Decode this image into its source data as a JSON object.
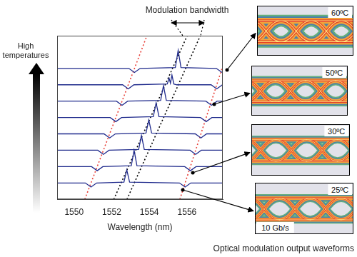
{
  "chart_data": {
    "type": "line",
    "xlabel": "Wavelength (nm)",
    "xlim": [
      1549.1,
      1557.9
    ],
    "xticks": [
      1550,
      1552,
      1554,
      1556
    ],
    "ylim": [
      -1,
      9
    ],
    "grid": false,
    "tick_labels": "x",
    "annotations": [
      "Modulation bandwidth",
      "High temperatures"
    ],
    "series": [
      {
        "color": "#1f2a8c",
        "line_style": "solid",
        "x": [
          1549.1,
          1550.6,
          1550.9,
          1551.2,
          1552.65,
          1552.8,
          1552.95,
          1555.6,
          1555.9,
          1556.2,
          1557.9
        ],
        "values": [
          0,
          0,
          -0.25,
          0,
          0.05,
          0.8,
          0.05,
          0,
          -0.25,
          0,
          0
        ]
      },
      {
        "color": "#1f2a8c",
        "line_style": "solid",
        "x": [
          1549.1,
          1550.93,
          1551.23,
          1551.53,
          1553.04,
          1553.19,
          1553.34,
          1555.88,
          1556.18,
          1556.48,
          1557.9
        ],
        "values": [
          1,
          1,
          0.75,
          1,
          1.05,
          2.0,
          1.05,
          1,
          0.75,
          1,
          1
        ]
      },
      {
        "color": "#1f2a8c",
        "line_style": "solid",
        "x": [
          1549.1,
          1551.26,
          1551.56,
          1551.86,
          1553.43,
          1553.58,
          1553.73,
          1556.16,
          1556.46,
          1556.76,
          1557.9
        ],
        "values": [
          2,
          2,
          1.75,
          2,
          2.05,
          2.9,
          2.05,
          2,
          1.75,
          2,
          2
        ]
      },
      {
        "color": "#1f2a8c",
        "line_style": "solid",
        "x": [
          1549.1,
          1551.59,
          1551.89,
          1552.19,
          1553.82,
          1553.97,
          1554.12,
          1556.44,
          1556.74,
          1557.04,
          1557.9
        ],
        "values": [
          3,
          3,
          2.75,
          3,
          3.05,
          3.85,
          3.05,
          3,
          2.75,
          3,
          3
        ]
      },
      {
        "color": "#1f2a8c",
        "line_style": "solid",
        "x": [
          1549.1,
          1551.92,
          1552.22,
          1552.52,
          1554.21,
          1554.36,
          1554.51,
          1556.72,
          1557.02,
          1557.32,
          1557.9
        ],
        "values": [
          4,
          4,
          3.75,
          4,
          4.05,
          4.9,
          4.05,
          4,
          3.75,
          4,
          4
        ]
      },
      {
        "color": "#1f2a8c",
        "line_style": "solid",
        "x": [
          1549.1,
          1552.25,
          1552.55,
          1552.85,
          1554.6,
          1554.75,
          1554.9,
          1557.0,
          1557.3,
          1557.6,
          1557.9
        ],
        "values": [
          5,
          5,
          4.75,
          5,
          5.05,
          5.95,
          5.05,
          5,
          4.75,
          5,
          5
        ]
      },
      {
        "color": "#1f2a8c",
        "line_style": "solid",
        "x": [
          1549.1,
          1552.58,
          1552.88,
          1553.18,
          1554.95,
          1555.05,
          1555.12,
          1555.2,
          1555.3,
          1555.45,
          1557.28,
          1557.58,
          1557.88
        ],
        "values": [
          6,
          6,
          5.75,
          6,
          6.05,
          6.4,
          6.1,
          6.6,
          6.05,
          6,
          6,
          5.75,
          6
        ]
      },
      {
        "color": "#1f2a8c",
        "line_style": "solid",
        "x": [
          1549.1,
          1552.91,
          1553.21,
          1553.51,
          1555.38,
          1555.53,
          1555.68,
          1557.56,
          1557.86
        ],
        "values": [
          7,
          7,
          6.75,
          7,
          7.05,
          8.1,
          7.05,
          7,
          6.75
        ]
      },
      {
        "color": "#000000",
        "line_style": "dotted",
        "x": [
          1552.11,
          1556.01
        ],
        "values": [
          -1,
          9
        ]
      },
      {
        "color": "#000000",
        "line_style": "dotted",
        "x": [
          1552.81,
          1556.71
        ],
        "values": [
          -1,
          9
        ]
      },
      {
        "color": "#e8413a",
        "line_style": "dotted",
        "x": [
          1550.57,
          1553.87
        ],
        "values": [
          -1,
          9
        ]
      },
      {
        "color": "#e8413a",
        "line_style": "dotted",
        "x": [
          1555.62,
          1558.42
        ],
        "values": [
          -1,
          9
        ]
      }
    ]
  },
  "insets": {
    "caption": "Optical modulation output waveforms",
    "bit_rate": "10 Gb/s",
    "temperatures": [
      "60ºC",
      "50ºC",
      "30ºC",
      "25ºC"
    ]
  }
}
